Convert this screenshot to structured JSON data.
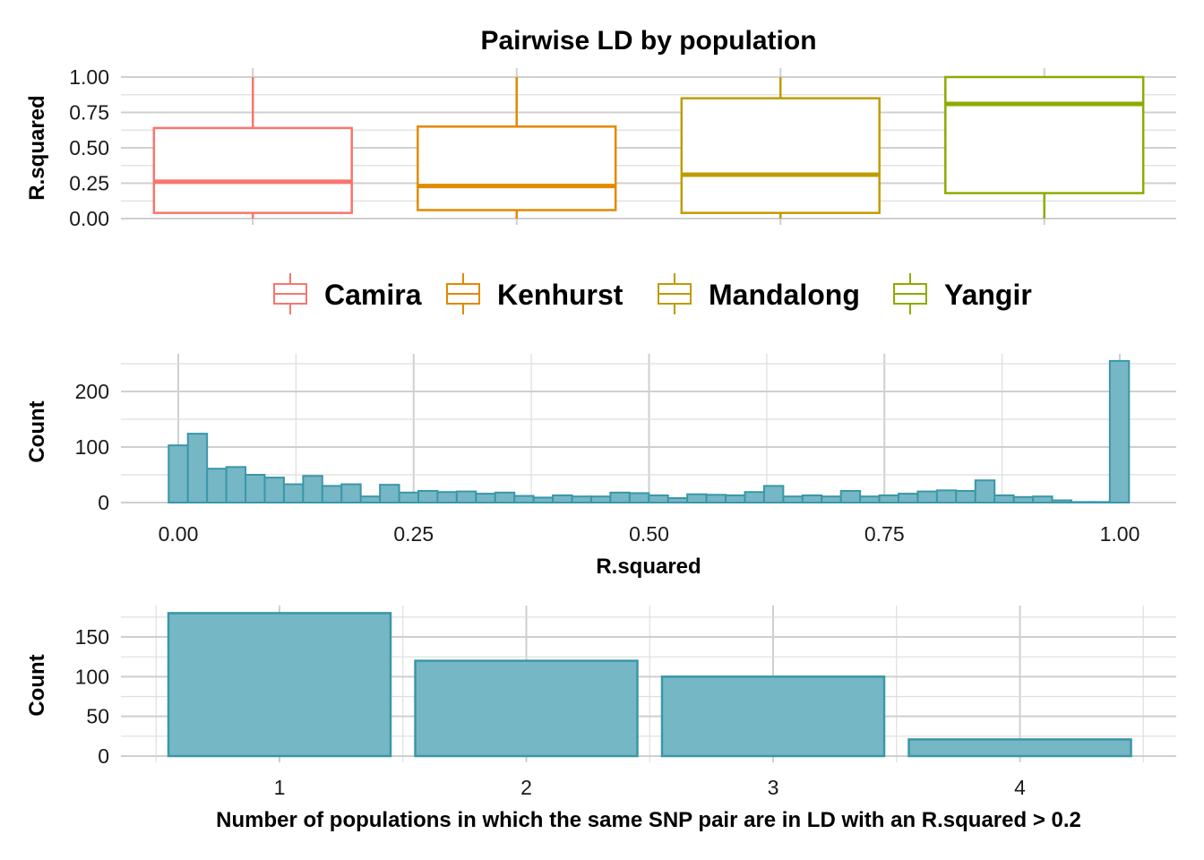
{
  "chart_data": [
    {
      "type": "box",
      "title": "Pairwise LD by population",
      "xlabel": "",
      "ylabel": "R.squared",
      "ylim": [
        0,
        1
      ],
      "y_ticks": [
        "0.00",
        "0.25",
        "0.50",
        "0.75",
        "1.00"
      ],
      "legend": {
        "position": "bottom",
        "entries": [
          "Camira",
          "Kenhurst",
          "Mandalong",
          "Yangir"
        ]
      },
      "groups": [
        {
          "name": "Camira",
          "color": "#F8766D",
          "min": 0.0,
          "q1": 0.04,
          "median": 0.26,
          "q3": 0.64,
          "max": 1.0
        },
        {
          "name": "Kenhurst",
          "color": "#E18A00",
          "min": 0.0,
          "q1": 0.06,
          "median": 0.23,
          "q3": 0.65,
          "max": 1.0
        },
        {
          "name": "Mandalong",
          "color": "#BE9C00",
          "min": 0.0,
          "q1": 0.04,
          "median": 0.31,
          "q3": 0.85,
          "max": 1.0
        },
        {
          "name": "Yangir",
          "color": "#8CAB00",
          "min": 0.0,
          "q1": 0.18,
          "median": 0.81,
          "q3": 1.0,
          "max": 1.0
        }
      ]
    },
    {
      "type": "histogram",
      "xlabel": "R.squared",
      "ylabel": "Count",
      "x_ticks": [
        "0.00",
        "0.25",
        "0.50",
        "0.75",
        "1.00"
      ],
      "y_ticks": [
        "0",
        "100",
        "200"
      ],
      "ylim": [
        0,
        255
      ],
      "bin_start": -0.0102,
      "bin_width": 0.0204,
      "fill": "#76B7C5",
      "stroke": "#3A97A8",
      "counts": [
        103,
        124,
        61,
        64,
        50,
        45,
        33,
        48,
        30,
        33,
        11,
        32,
        18,
        21,
        19,
        20,
        16,
        18,
        12,
        9,
        13,
        11,
        11,
        18,
        17,
        13,
        8,
        15,
        14,
        13,
        19,
        30,
        11,
        13,
        11,
        21,
        11,
        13,
        16,
        20,
        22,
        21,
        40,
        13,
        10,
        11,
        4,
        1,
        1,
        255
      ]
    },
    {
      "type": "bar",
      "xlabel": "Number of populations in which the same SNP pair are in LD with an R.squared > 0.2",
      "ylabel": "Count",
      "categories": [
        "1",
        "2",
        "3",
        "4"
      ],
      "y_ticks": [
        "0",
        "50",
        "100",
        "150"
      ],
      "ylim": [
        0,
        180
      ],
      "fill": "#76B7C5",
      "stroke": "#3A97A8",
      "values": [
        180,
        120,
        100,
        21
      ]
    }
  ]
}
